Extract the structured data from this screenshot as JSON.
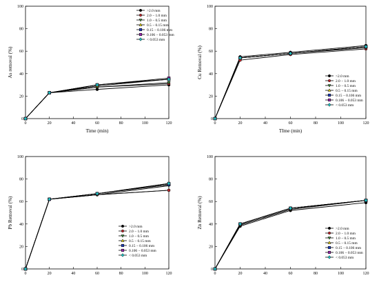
{
  "series_names": [
    ">2.0 mm",
    "2.0 − 1.0 mm",
    "1.0 − 0.5 mm",
    "0.5 − 0.15 mm",
    "0.15 − 0.106 mm",
    "0.106 − 0.053 mm",
    "< 0.053 mm"
  ],
  "series_styles": [
    {
      "marker": "circle",
      "color": "#000000"
    },
    {
      "marker": "circle",
      "color": "#c0282d"
    },
    {
      "marker": "triangle-down",
      "color": "#3a8a3a"
    },
    {
      "marker": "triangle-up",
      "color": "#e8d200"
    },
    {
      "marker": "square",
      "color": "#1f3fbf"
    },
    {
      "marker": "square",
      "color": "#9b27b0"
    },
    {
      "marker": "diamond",
      "color": "#20c0c0"
    }
  ],
  "chart_data": [
    {
      "type": "line",
      "xlabel": "Time (min)",
      "ylabel": "As removal (%)",
      "xlim": [
        0,
        120
      ],
      "ylim": [
        0,
        100
      ],
      "xticks": [
        0,
        20,
        40,
        60,
        80,
        100,
        120
      ],
      "yticks": [
        0,
        20,
        40,
        60,
        80,
        100
      ],
      "legend": "top-right",
      "x": [
        0,
        20,
        60,
        120
      ],
      "series": [
        {
          "name": ">2.0 mm",
          "values": [
            0,
            23,
            26,
            30
          ]
        },
        {
          "name": "2.0 − 1.0 mm",
          "values": [
            0,
            23,
            28,
            31
          ]
        },
        {
          "name": "1.0 − 0.5 mm",
          "values": [
            0,
            23,
            28,
            32
          ]
        },
        {
          "name": "0.5 − 0.15 mm",
          "values": [
            0,
            23,
            29,
            35
          ]
        },
        {
          "name": "0.15 − 0.106 mm",
          "values": [
            0,
            23,
            30,
            35
          ]
        },
        {
          "name": "0.106 − 0.053 mm",
          "values": [
            0,
            23,
            30,
            36
          ]
        },
        {
          "name": "< 0.053 mm",
          "values": [
            0,
            23,
            30,
            35
          ]
        }
      ]
    },
    {
      "type": "line",
      "xlabel": "TIme (min)",
      "ylabel": "Cu Removal (%)",
      "xlim": [
        0,
        120
      ],
      "ylim": [
        0,
        100
      ],
      "xticks": [
        0,
        20,
        40,
        60,
        80,
        100,
        120
      ],
      "yticks": [
        0,
        20,
        40,
        60,
        80,
        100
      ],
      "legend": "bottom-right",
      "x": [
        0,
        20,
        60,
        120
      ],
      "series": [
        {
          "name": ">2.0 mm",
          "values": [
            0,
            55,
            59,
            65
          ]
        },
        {
          "name": "2.0 − 1.0 mm",
          "values": [
            0,
            52,
            57,
            62
          ]
        },
        {
          "name": "1.0 − 0.5 mm",
          "values": [
            0,
            54,
            58,
            63
          ]
        },
        {
          "name": "0.5 − 0.15 mm",
          "values": [
            0,
            54,
            58,
            64
          ]
        },
        {
          "name": "0.15 − 0.106 mm",
          "values": [
            0,
            54,
            58,
            64
          ]
        },
        {
          "name": "0.106 − 0.053 mm",
          "values": [
            0,
            54,
            58,
            64
          ]
        },
        {
          "name": "< 0.053 mm",
          "values": [
            0,
            54,
            58,
            64
          ]
        }
      ]
    },
    {
      "type": "line",
      "xlabel": "",
      "ylabel": "Pb Removal (%)",
      "xlim": [
        0,
        120
      ],
      "ylim": [
        0,
        100
      ],
      "xticks": [
        0,
        20,
        40,
        60,
        80,
        100,
        120
      ],
      "yticks": [
        0,
        20,
        40,
        60,
        80,
        100
      ],
      "legend": "bottom-right",
      "x": [
        0,
        20,
        60,
        120
      ],
      "series": [
        {
          "name": ">2.0 mm",
          "values": [
            0,
            62,
            66,
            70
          ]
        },
        {
          "name": "2.0 − 1.0 mm",
          "values": [
            0,
            62,
            66,
            70
          ]
        },
        {
          "name": "1.0 − 0.5 mm",
          "values": [
            0,
            62,
            66,
            74
          ]
        },
        {
          "name": "0.5 − 0.15 mm",
          "values": [
            0,
            62,
            67,
            75
          ]
        },
        {
          "name": "0.15 − 0.106 mm",
          "values": [
            0,
            62,
            67,
            75
          ]
        },
        {
          "name": "0.106 − 0.053 mm",
          "values": [
            0,
            62,
            67,
            76
          ]
        },
        {
          "name": "< 0.053 mm",
          "values": [
            0,
            62,
            67,
            76
          ]
        }
      ]
    },
    {
      "type": "line",
      "xlabel": "",
      "ylabel": "Zn Removal (%)",
      "xlim": [
        0,
        120
      ],
      "ylim": [
        0,
        100
      ],
      "xticks": [
        0,
        20,
        40,
        60,
        80,
        100,
        120
      ],
      "yticks": [
        0,
        20,
        40,
        60,
        80,
        100
      ],
      "legend": "bottom-right",
      "x": [
        0,
        20,
        60,
        120
      ],
      "series": [
        {
          "name": ">2.0 mm",
          "values": [
            0,
            38,
            52,
            59
          ]
        },
        {
          "name": "2.0 − 1.0 mm",
          "values": [
            0,
            39,
            53,
            61
          ]
        },
        {
          "name": "1.0 − 0.5 mm",
          "values": [
            0,
            39,
            53,
            61
          ]
        },
        {
          "name": "0.5 − 0.15 mm",
          "values": [
            0,
            40,
            54,
            61
          ]
        },
        {
          "name": "0.15 − 0.106 mm",
          "values": [
            0,
            40,
            54,
            61
          ]
        },
        {
          "name": "0.106 − 0.053 mm",
          "values": [
            0,
            40,
            54,
            61
          ]
        },
        {
          "name": "< 0.053 mm",
          "values": [
            0,
            40,
            54,
            61
          ]
        }
      ]
    }
  ]
}
